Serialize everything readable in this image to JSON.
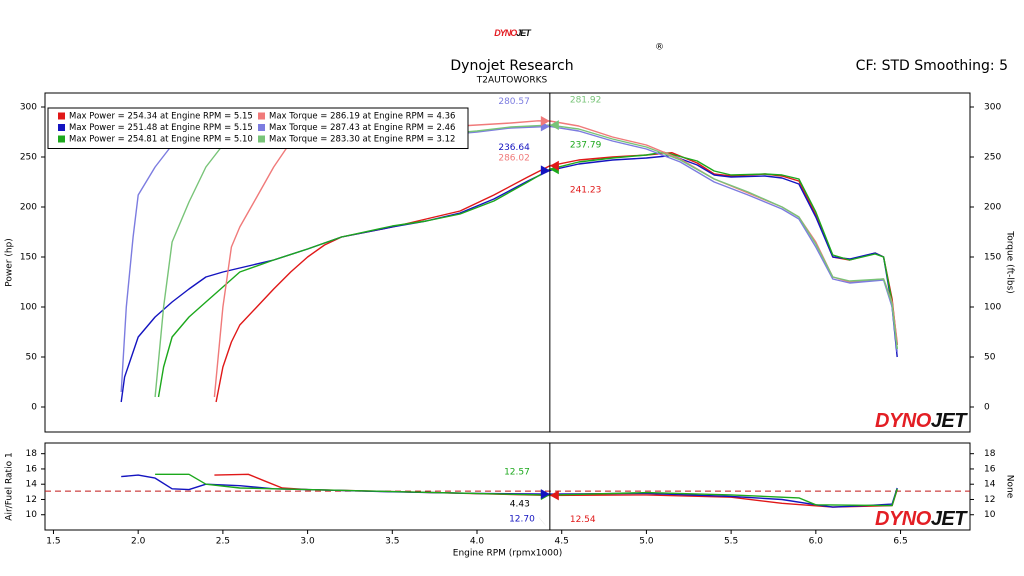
{
  "logo": [
    "DYNO",
    "JET"
  ],
  "logo_mark": "®",
  "chart_data": [
    {
      "type": "line",
      "title": "Dynojet Research",
      "subtitle": "T2AUTOWORKS",
      "annotation": "CF: STD Smoothing: 5",
      "ylabel": "Power (hp)",
      "y2label": "Torque (ft-lbs)",
      "xlim": [
        1.45,
        6.91
      ],
      "ylim": [
        -25,
        314
      ],
      "y2lim": [
        -25,
        314
      ],
      "yticks": [
        0,
        50,
        100,
        150,
        200,
        250,
        300
      ],
      "y2ticks": [
        0,
        50,
        100,
        150,
        200,
        250,
        300
      ],
      "grid": false,
      "legend": "top-left",
      "watermark": [
        "DYNO",
        "JET"
      ],
      "cursor_x": 4.43,
      "series": [
        {
          "name": "Max Power = 254.34 at Engine RPM = 5.15",
          "color": "#e01818",
          "x": [
            2.46,
            2.5,
            2.55,
            2.6,
            2.7,
            2.8,
            2.9,
            3.0,
            3.1,
            3.2,
            3.5,
            3.7,
            3.9,
            4.1,
            4.3,
            4.43,
            4.6,
            4.8,
            5.0,
            5.15,
            5.3,
            5.4,
            5.5,
            5.7,
            5.8,
            5.9,
            6.0,
            6.1,
            6.2,
            6.35,
            6.4,
            6.45,
            6.48
          ],
          "values": [
            5,
            40,
            65,
            82,
            100,
            118,
            135,
            150,
            162,
            170,
            180,
            188,
            196,
            212,
            230,
            241.23,
            247,
            250,
            252,
            254.34,
            244,
            233,
            231,
            233,
            231,
            226,
            192,
            150,
            147,
            154,
            150,
            108,
            62
          ]
        },
        {
          "name": "Max Power = 251.48 at Engine RPM = 5.15",
          "color": "#1414c0",
          "x": [
            1.9,
            1.92,
            1.95,
            2.0,
            2.1,
            2.2,
            2.3,
            2.4,
            2.5,
            2.6,
            2.8,
            3.0,
            3.2,
            3.5,
            3.7,
            3.9,
            4.1,
            4.3,
            4.43,
            4.6,
            4.8,
            5.0,
            5.15,
            5.3,
            5.4,
            5.5,
            5.7,
            5.8,
            5.9,
            6.0,
            6.1,
            6.2,
            6.35,
            6.4,
            6.45,
            6.48
          ],
          "values": [
            5,
            30,
            45,
            70,
            90,
            105,
            118,
            130,
            135,
            139,
            147,
            158,
            170,
            180,
            186,
            194,
            208,
            226,
            236.64,
            243,
            247,
            249,
            251.48,
            242,
            232,
            230,
            231,
            229,
            223,
            190,
            150,
            148,
            154,
            150,
            100,
            50
          ]
        },
        {
          "name": "Max Power = 254.81 at Engine RPM = 5.10",
          "color": "#1ca81c",
          "x": [
            2.12,
            2.15,
            2.2,
            2.3,
            2.4,
            2.5,
            2.6,
            2.8,
            3.0,
            3.2,
            3.5,
            3.7,
            3.9,
            4.1,
            4.3,
            4.43,
            4.6,
            4.8,
            5.0,
            5.1,
            5.3,
            5.4,
            5.5,
            5.7,
            5.8,
            5.9,
            6.0,
            6.1,
            6.2,
            6.35,
            6.4,
            6.45,
            6.48
          ],
          "values": [
            10,
            40,
            70,
            90,
            105,
            120,
            135,
            147,
            158,
            170,
            181,
            186,
            193,
            206,
            225,
            237.79,
            245,
            249,
            252,
            254.81,
            246,
            236,
            232,
            233,
            232,
            228,
            195,
            152,
            147,
            153,
            150,
            105,
            58
          ]
        },
        {
          "name": "Max Torque = 286.19 at Engine RPM = 4.36",
          "color": "#f07a7a",
          "axis": "y2",
          "x": [
            2.45,
            2.5,
            2.55,
            2.6,
            2.7,
            2.8,
            2.9,
            3.0,
            3.3,
            3.6,
            3.9,
            4.2,
            4.36,
            4.43,
            4.6,
            4.8,
            5.0,
            5.2,
            5.4,
            5.6,
            5.8,
            5.9,
            6.0,
            6.1,
            6.2,
            6.4,
            6.45,
            6.48
          ],
          "values": [
            10,
            100,
            160,
            180,
            210,
            240,
            265,
            280,
            284,
            283,
            281,
            284,
            286.19,
            286.02,
            281,
            270,
            262,
            248,
            228,
            214,
            200,
            190,
            165,
            130,
            125,
            128,
            105,
            65
          ]
        },
        {
          "name": "Max Torque = 287.43 at Engine RPM = 2.46",
          "color": "#7c7ce0",
          "axis": "y2",
          "x": [
            1.9,
            1.93,
            1.97,
            2.0,
            2.1,
            2.2,
            2.46,
            3.0,
            3.5,
            3.8,
            4.0,
            4.2,
            4.43,
            4.6,
            4.8,
            5.0,
            5.2,
            5.4,
            5.6,
            5.8,
            5.9,
            6.0,
            6.1,
            6.2,
            6.4,
            6.45,
            6.48
          ],
          "values": [
            15,
            100,
            170,
            212,
            240,
            262,
            287.43,
            276,
            273,
            272,
            275,
            279,
            280.57,
            276,
            266,
            258,
            245,
            225,
            212,
            198,
            188,
            160,
            128,
            124,
            127,
            100,
            55
          ]
        },
        {
          "name": "Max Torque = 283.30 at Engine RPM = 3.12",
          "color": "#78c478",
          "axis": "y2",
          "x": [
            2.1,
            2.15,
            2.2,
            2.3,
            2.4,
            2.5,
            2.7,
            3.12,
            3.5,
            3.8,
            4.0,
            4.2,
            4.43,
            4.6,
            4.8,
            5.0,
            5.2,
            5.4,
            5.6,
            5.8,
            5.9,
            6.0,
            6.1,
            6.2,
            6.4,
            6.45,
            6.48
          ],
          "values": [
            10,
            100,
            165,
            205,
            240,
            262,
            280,
            283.3,
            276,
            273,
            276,
            280,
            281.92,
            278,
            268,
            260,
            247,
            228,
            215,
            200,
            190,
            163,
            130,
            126,
            128,
            103,
            58
          ]
        }
      ],
      "readouts": [
        {
          "series": 4,
          "value": 280.57
        },
        {
          "series": 5,
          "value": 281.92
        },
        {
          "series": 1,
          "value": 236.64
        },
        {
          "series": 2,
          "value": 237.79
        },
        {
          "series": 3,
          "value": 286.02
        },
        {
          "series": 0,
          "value": 241.23
        }
      ]
    },
    {
      "type": "line",
      "xlabel": "Engine RPM (rpmx1000)",
      "ylabel": "Air/Fuel Ratio 1",
      "y2label": "None",
      "xlim": [
        1.45,
        6.91
      ],
      "ylim": [
        8,
        19.4
      ],
      "y2lim": [
        8,
        19.4
      ],
      "xticks": [
        1.5,
        {
          "value": 2,
          "label": "2.0"
        },
        2.5,
        {
          "value": 3,
          "label": "3.0"
        },
        3.5,
        {
          "value": 4,
          "label": "4.0"
        },
        4.5,
        {
          "value": 5,
          "label": "5.0"
        },
        5.5,
        {
          "value": 6,
          "label": "6.0"
        },
        6.5
      ],
      "yticks": [
        10,
        12,
        14,
        16,
        18
      ],
      "y2ticks": [
        10,
        12,
        14,
        16,
        18
      ],
      "grid": false,
      "watermark": [
        "DYNO",
        "JET"
      ],
      "cursor_x": 4.43,
      "reference_line": {
        "value": 13.1,
        "color": "#c01818"
      },
      "series": [
        {
          "color": "#e01818",
          "x": [
            2.45,
            2.65,
            2.75,
            2.85,
            3.0,
            4.43,
            5.0,
            5.5,
            5.8,
            6.1,
            6.45,
            6.48
          ],
          "values": [
            15.2,
            15.3,
            14.4,
            13.5,
            13.3,
            12.54,
            12.6,
            12.3,
            11.5,
            11.0,
            11.2,
            13.3
          ]
        },
        {
          "color": "#1414c0",
          "x": [
            1.9,
            2.0,
            2.1,
            2.2,
            2.3,
            2.4,
            2.6,
            2.8,
            3.0,
            3.5,
            4.0,
            4.43,
            5.0,
            5.5,
            5.8,
            6.0,
            6.1,
            6.3,
            6.45,
            6.48
          ],
          "values": [
            15.0,
            15.2,
            14.8,
            13.4,
            13.3,
            14.0,
            13.8,
            13.4,
            13.3,
            13.0,
            12.8,
            12.7,
            12.8,
            12.4,
            12.0,
            11.3,
            11.0,
            11.2,
            11.4,
            13.5
          ]
        },
        {
          "color": "#1ca81c",
          "x": [
            2.1,
            2.3,
            2.4,
            2.6,
            3.0,
            4.43,
            5.0,
            5.5,
            5.9,
            6.0,
            6.45,
            6.48
          ],
          "values": [
            15.3,
            15.3,
            14.0,
            13.5,
            13.3,
            12.57,
            12.9,
            12.6,
            12.2,
            11.3,
            11.2,
            13.4
          ]
        }
      ],
      "readouts": [
        {
          "series": 2,
          "value": 12.57
        },
        {
          "series": 1,
          "value": 12.7,
          "label": "12.70"
        },
        {
          "series": 0,
          "value": 12.54
        }
      ]
    }
  ]
}
